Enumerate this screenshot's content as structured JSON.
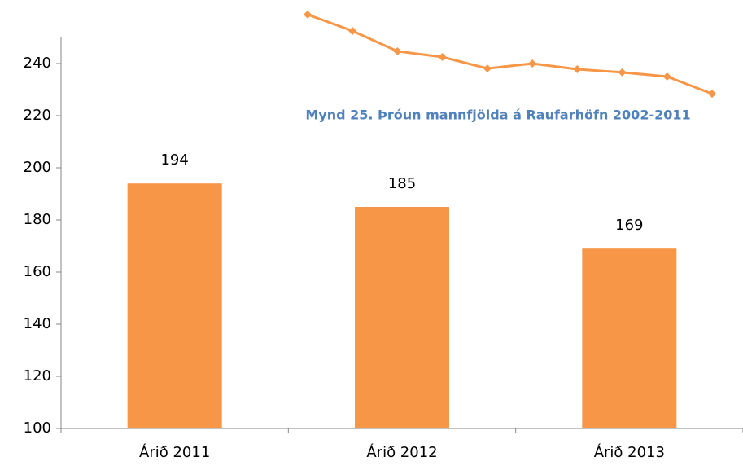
{
  "chart_data": [
    {
      "type": "bar",
      "categories": [
        "Árið 2011",
        "Árið 2012",
        "Árið 2013"
      ],
      "values": [
        194,
        185,
        169
      ],
      "color": "#f79646",
      "ylim": [
        100,
        250
      ],
      "yticks": [
        100,
        120,
        140,
        160,
        180,
        200,
        220,
        240
      ]
    },
    {
      "type": "line",
      "title": "Mynd 25. Þróun mannfjölda á Raufarhöfn 2002-2011",
      "categories": [
        null,
        null,
        null,
        null,
        null,
        null,
        null,
        null,
        null,
        null
      ],
      "values": [
        258.8,
        252.5,
        244.7,
        242.5,
        238.1,
        240,
        237.8,
        236.6,
        235,
        228.4
      ],
      "color": "#f79646",
      "ylim": [
        100,
        250
      ]
    }
  ]
}
